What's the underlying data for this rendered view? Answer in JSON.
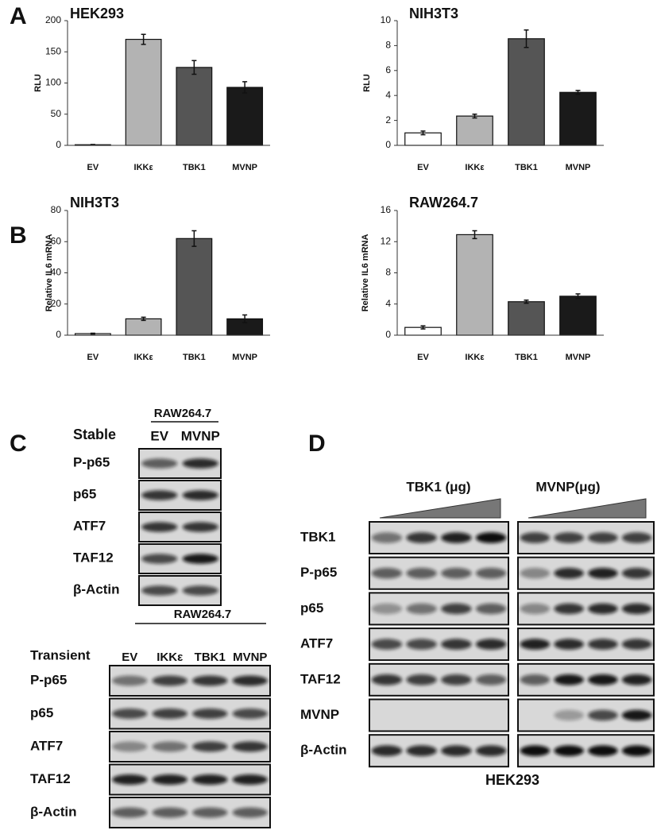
{
  "panels": {
    "a": "A",
    "b": "B",
    "c": "C",
    "d": "D"
  },
  "chart_data": [
    {
      "type": "bar",
      "title": "HEK293",
      "ylabel": "RLU",
      "categories": [
        "EV",
        "IKKε",
        "TBK1",
        "MVNP"
      ],
      "values": [
        1,
        170,
        125,
        93
      ],
      "errors": [
        0.5,
        8,
        11,
        9
      ],
      "colors": [
        "#ffffff",
        "#b3b3b3",
        "#555555",
        "#1a1a1a"
      ],
      "ylim": [
        0,
        200
      ],
      "yticks": [
        0,
        50,
        100,
        150,
        200
      ]
    },
    {
      "type": "bar",
      "title": "NIH3T3",
      "ylabel": "RLU",
      "categories": [
        "EV",
        "IKKε",
        "TBK1",
        "MVNP"
      ],
      "values": [
        1,
        2.35,
        8.55,
        4.25
      ],
      "errors": [
        0.15,
        0.15,
        0.7,
        0.15
      ],
      "colors": [
        "#ffffff",
        "#b3b3b3",
        "#555555",
        "#1a1a1a"
      ],
      "ylim": [
        0,
        10
      ],
      "yticks": [
        0,
        2,
        4,
        6,
        8,
        10
      ]
    },
    {
      "type": "bar",
      "title": "NIH3T3",
      "ylabel": "Relative IL6 mRNA",
      "categories": [
        "EV",
        "IKKε",
        "TBK1",
        "MVNP"
      ],
      "values": [
        1,
        10.5,
        62,
        10.5
      ],
      "errors": [
        0.3,
        1,
        5,
        2.5
      ],
      "colors": [
        "#ffffff",
        "#b3b3b3",
        "#555555",
        "#1a1a1a"
      ],
      "ylim": [
        0,
        80
      ],
      "yticks": [
        0,
        20,
        40,
        60,
        80
      ]
    },
    {
      "type": "bar",
      "title": "RAW264.7",
      "ylabel": "Relative IL6 mRNA",
      "categories": [
        "EV",
        "IKKε",
        "TBK1",
        "MVNP"
      ],
      "values": [
        1,
        12.9,
        4.3,
        5.0
      ],
      "errors": [
        0.2,
        0.5,
        0.2,
        0.3
      ],
      "colors": [
        "#ffffff",
        "#b3b3b3",
        "#555555",
        "#1a1a1a"
      ],
      "ylim": [
        0,
        16
      ],
      "yticks": [
        0,
        4,
        8,
        12,
        16
      ]
    }
  ],
  "blot_stable": {
    "header": "RAW264.7",
    "label": "Stable",
    "lanes": [
      "EV",
      "MVNP"
    ],
    "rows": [
      "P-p65",
      "p65",
      "ATF7",
      "TAF12",
      "β-Actin"
    ]
  },
  "blot_transient": {
    "header": "RAW264.7",
    "label": "Transient",
    "lanes": [
      "EV",
      "IKKε",
      "TBK1",
      "MVNP"
    ],
    "rows": [
      "P-p65",
      "p65",
      "ATF7",
      "TAF12",
      "β-Actin"
    ]
  },
  "blot_hek": {
    "groups": [
      "TBK1 (μg)",
      "MVNP(μg)"
    ],
    "rows": [
      "TBK1",
      "P-p65",
      "p65",
      "ATF7",
      "TAF12",
      "MVNP",
      "β-Actin"
    ],
    "footer": "HEK293"
  }
}
